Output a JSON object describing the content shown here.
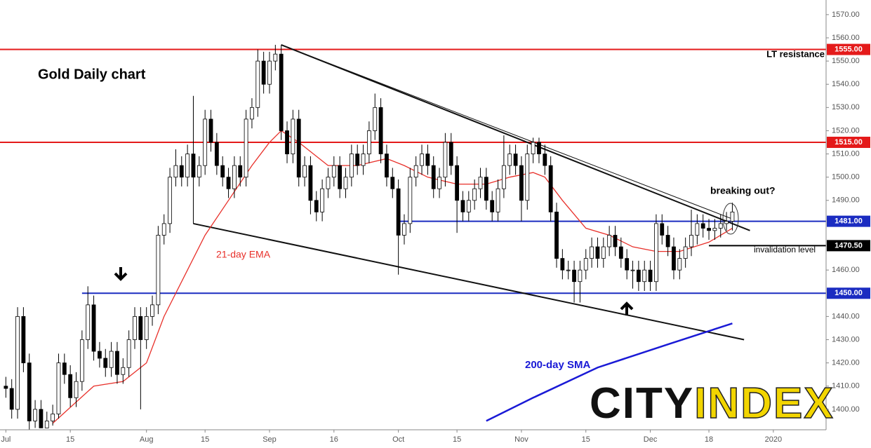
{
  "chart_data": {
    "type": "candlestick",
    "title": "Gold Daily chart",
    "open": [
      1410,
      1409,
      1400,
      1440,
      1420,
      1395,
      1400,
      1392,
      1395,
      1398,
      1420,
      1415,
      1405,
      1412,
      1430,
      1445,
      1425,
      1422,
      1418,
      1425,
      1415,
      1418,
      1430,
      1440,
      1430,
      1440,
      1445,
      1475,
      1480,
      1500,
      1505,
      1500,
      1510,
      1500,
      1505,
      1525,
      1515,
      1505,
      1500,
      1495,
      1505,
      1500,
      1525,
      1530,
      1550,
      1540,
      1550,
      1553,
      1520,
      1510,
      1525,
      1500,
      1505,
      1490,
      1485,
      1495,
      1500,
      1505,
      1495,
      1500,
      1510,
      1505,
      1510,
      1520,
      1530,
      1510,
      1500,
      1495,
      1475,
      1480,
      1500,
      1505,
      1510,
      1505,
      1495,
      1500,
      1515,
      1505,
      1490,
      1485,
      1490,
      1495,
      1500,
      1490,
      1485,
      1495,
      1505,
      1510,
      1505,
      1490,
      1510,
      1515,
      1510,
      1505,
      1485,
      1465,
      1460,
      1460,
      1455,
      1460,
      1465,
      1470,
      1465,
      1470,
      1475,
      1470,
      1465,
      1460,
      1460,
      1455,
      1460,
      1455,
      1480,
      1475,
      1470,
      1460,
      1465,
      1470,
      1475,
      1480,
      1478,
      1477,
      1478,
      1480,
      1481
    ],
    "high": [
      1414,
      1413,
      1444,
      1444,
      1424,
      1404,
      1404,
      1399,
      1402,
      1424,
      1424,
      1419,
      1416,
      1434,
      1453,
      1449,
      1429,
      1426,
      1429,
      1429,
      1422,
      1434,
      1444,
      1444,
      1444,
      1449,
      1479,
      1484,
      1504,
      1512,
      1509,
      1514,
      1535,
      1509,
      1529,
      1529,
      1519,
      1509,
      1504,
      1509,
      1509,
      1529,
      1534,
      1555,
      1554,
      1554,
      1557,
      1557,
      1524,
      1529,
      1529,
      1509,
      1509,
      1494,
      1499,
      1504,
      1509,
      1509,
      1504,
      1514,
      1514,
      1514,
      1524,
      1536,
      1534,
      1514,
      1504,
      1499,
      1484,
      1504,
      1509,
      1514,
      1514,
      1509,
      1504,
      1519,
      1519,
      1509,
      1494,
      1494,
      1499,
      1504,
      1504,
      1494,
      1499,
      1518,
      1514,
      1514,
      1509,
      1514,
      1517,
      1517,
      1514,
      1509,
      1489,
      1469,
      1464,
      1464,
      1464,
      1469,
      1474,
      1474,
      1474,
      1479,
      1479,
      1474,
      1469,
      1464,
      1464,
      1464,
      1464,
      1484,
      1484,
      1479,
      1474,
      1469,
      1474,
      1486,
      1484,
      1484,
      1482,
      1482,
      1484,
      1485,
      1489
    ],
    "low": [
      1405,
      1396,
      1396,
      1416,
      1391,
      1392,
      1392,
      1392,
      1393,
      1396,
      1411,
      1401,
      1401,
      1408,
      1426,
      1421,
      1418,
      1414,
      1414,
      1411,
      1411,
      1414,
      1426,
      1400,
      1426,
      1436,
      1441,
      1471,
      1476,
      1496,
      1496,
      1496,
      1480,
      1496,
      1501,
      1511,
      1501,
      1496,
      1491,
      1491,
      1496,
      1496,
      1521,
      1526,
      1536,
      1536,
      1546,
      1516,
      1506,
      1506,
      1496,
      1496,
      1484,
      1481,
      1481,
      1491,
      1496,
      1491,
      1491,
      1496,
      1501,
      1501,
      1506,
      1516,
      1506,
      1496,
      1491,
      1458,
      1471,
      1476,
      1496,
      1501,
      1501,
      1491,
      1491,
      1496,
      1501,
      1476,
      1481,
      1481,
      1486,
      1491,
      1486,
      1481,
      1481,
      1491,
      1501,
      1501,
      1481,
      1486,
      1506,
      1506,
      1501,
      1481,
      1461,
      1456,
      1456,
      1446,
      1446,
      1456,
      1461,
      1461,
      1461,
      1466,
      1466,
      1461,
      1456,
      1452,
      1451,
      1451,
      1451,
      1451,
      1471,
      1466,
      1456,
      1456,
      1461,
      1466,
      1471,
      1474,
      1473,
      1473,
      1474,
      1477,
      1477
    ],
    "close": [
      1409,
      1400,
      1440,
      1420,
      1395,
      1400,
      1392,
      1395,
      1398,
      1420,
      1415,
      1405,
      1412,
      1430,
      1445,
      1425,
      1422,
      1418,
      1425,
      1415,
      1418,
      1430,
      1440,
      1430,
      1440,
      1445,
      1475,
      1480,
      1500,
      1505,
      1500,
      1510,
      1500,
      1505,
      1525,
      1515,
      1505,
      1500,
      1495,
      1505,
      1500,
      1525,
      1530,
      1550,
      1540,
      1550,
      1553,
      1520,
      1510,
      1525,
      1500,
      1505,
      1490,
      1485,
      1495,
      1500,
      1505,
      1495,
      1500,
      1510,
      1505,
      1510,
      1520,
      1530,
      1510,
      1500,
      1495,
      1475,
      1480,
      1500,
      1505,
      1510,
      1505,
      1495,
      1500,
      1515,
      1505,
      1490,
      1485,
      1490,
      1495,
      1500,
      1490,
      1485,
      1495,
      1505,
      1510,
      1505,
      1490,
      1510,
      1515,
      1510,
      1505,
      1485,
      1465,
      1460,
      1460,
      1455,
      1460,
      1465,
      1470,
      1465,
      1470,
      1475,
      1470,
      1465,
      1460,
      1460,
      1455,
      1460,
      1455,
      1480,
      1475,
      1470,
      1460,
      1465,
      1470,
      1475,
      1480,
      1478,
      1477,
      1478,
      1480,
      1481,
      1485
    ],
    "xlim": [
      -1,
      140
    ],
    "xticks": [
      {
        "value": 0,
        "label": "Jul"
      },
      {
        "value": 11,
        "label": "15"
      },
      {
        "value": 24,
        "label": "Aug"
      },
      {
        "value": 34,
        "label": "15"
      },
      {
        "value": 45,
        "label": "Sep"
      },
      {
        "value": 56,
        "label": "16"
      },
      {
        "value": 67,
        "label": "Oct"
      },
      {
        "value": 77,
        "label": "15"
      },
      {
        "value": 88,
        "label": "Nov"
      },
      {
        "value": 99,
        "label": "15"
      },
      {
        "value": 110,
        "label": "Dec"
      },
      {
        "value": 120,
        "label": "18"
      },
      {
        "value": 131,
        "label": "2020"
      }
    ],
    "ylim": [
      1391.2,
      1576.3
    ],
    "yticks": [
      {
        "value": 1400,
        "label": "1400.00"
      },
      {
        "value": 1410,
        "label": "1410.00"
      },
      {
        "value": 1420,
        "label": "1420.00"
      },
      {
        "value": 1430,
        "label": "1430.00"
      },
      {
        "value": 1440,
        "label": "1440.00"
      },
      {
        "value": 1460,
        "label": "1460.00"
      },
      {
        "value": 1490,
        "label": "1490.00"
      },
      {
        "value": 1500,
        "label": "1500.00"
      },
      {
        "value": 1510,
        "label": "1510.00"
      },
      {
        "value": 1520,
        "label": "1520.00"
      },
      {
        "value": 1530,
        "label": "1530.00"
      },
      {
        "value": 1540,
        "label": "1540.00"
      },
      {
        "value": 1550,
        "label": "1550.00"
      },
      {
        "value": 1560,
        "label": "1560.00"
      },
      {
        "value": 1570,
        "label": "1570.00"
      }
    ],
    "lines": [
      {
        "name": "21-day EMA",
        "color": "#e8302a",
        "x": [
          8,
          15,
          20,
          24,
          27,
          31,
          34,
          38,
          42,
          45,
          47,
          50,
          55,
          60,
          65,
          68,
          72,
          77,
          82,
          86,
          90,
          92,
          95,
          99,
          103,
          107,
          111,
          115,
          120,
          124
        ],
        "values": [
          1394,
          1410,
          1412,
          1420,
          1440,
          1460,
          1475,
          1490,
          1505,
          1515,
          1520,
          1515,
          1505,
          1505,
          1508,
          1505,
          1500,
          1497,
          1497,
          1500,
          1502,
          1500,
          1490,
          1478,
          1475,
          1470,
          1468,
          1468,
          1472,
          1478
        ]
      },
      {
        "name": "200-day SMA",
        "color": "#1a1ad6",
        "x": [
          82,
          90,
          101,
          113,
          124
        ],
        "values": [
          1395,
          1405,
          1418,
          1428,
          1437
        ]
      }
    ],
    "trendlines": [
      {
        "x": [
          47,
          127
        ],
        "values": [
          1557,
          1477
        ],
        "width": 2
      },
      {
        "x": [
          48,
          124
        ],
        "values": [
          1556,
          1482
        ],
        "width": 1
      },
      {
        "x": [
          32,
          126
        ],
        "values": [
          1480,
          1430
        ],
        "width": 2
      }
    ],
    "levels": [
      {
        "value": 1555,
        "label": "1555.00",
        "color": "#e41a1a",
        "x0": -1
      },
      {
        "value": 1515,
        "label": "1515.00",
        "color": "#e41a1a",
        "x0": -1
      },
      {
        "value": 1481,
        "label": "1481.00",
        "color": "#1b2cc1",
        "x0": 67
      },
      {
        "value": 1450,
        "label": "1450.00",
        "color": "#1b2cc1",
        "x0": 13
      },
      {
        "value": 1470.5,
        "label": "1470.50",
        "color": "#000000",
        "x0": 120
      }
    ],
    "annotations": {
      "lt_resistance": "LT resistance",
      "breaking_out": "breaking out?",
      "invalidation": "invalidation level",
      "ema_label": "21-day EMA",
      "sma_label": "200-day SMA"
    },
    "logo": {
      "left": "CITY",
      "right": "INDEX"
    }
  }
}
